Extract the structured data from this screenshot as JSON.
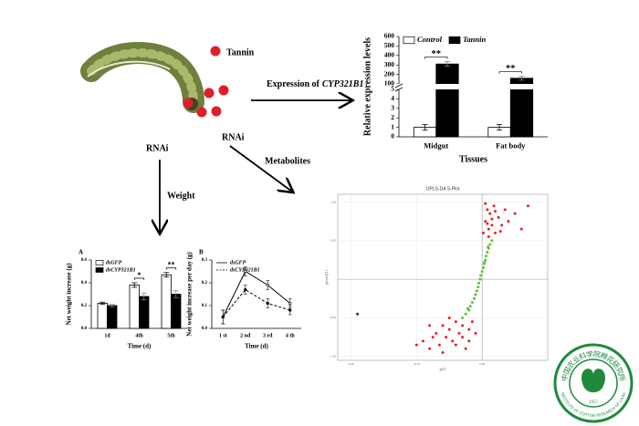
{
  "labels": {
    "tannin": "Tannin",
    "expression_prefix": "Expression of",
    "expression_gene": "CYP321B1",
    "rnai_left": "RNAi",
    "rnai_right": "RNAi",
    "metabolites": "Metabolites",
    "weight": "Weight"
  },
  "logo": {
    "name_cn": "中国农业科学院棉花研究所",
    "name_en": "INSTITUTE OF COTTON RESEARCH OF CAAS",
    "year": "1957"
  },
  "chart_data": [
    {
      "type": "bar",
      "ylabel": "Relative expression levels",
      "xlabel": "Tissues",
      "categories": [
        "Midgut",
        "Fat body"
      ],
      "series": [
        {
          "name": "Control",
          "color": "#ffffff",
          "values": [
            1,
            1
          ],
          "errors": [
            0.3,
            0.3
          ]
        },
        {
          "name": "Tannin",
          "color": "#000000",
          "values": [
            310,
            160
          ],
          "errors": [
            25,
            20
          ]
        }
      ],
      "annotations": [
        "**",
        "**"
      ],
      "ylim": [
        0,
        600
      ],
      "ybreak": [
        5,
        100
      ],
      "yticks": [
        0,
        1,
        2,
        3,
        4,
        5,
        100,
        200,
        300,
        400,
        500,
        600
      ]
    },
    {
      "type": "bar",
      "panel": "A",
      "ylabel": "Net weight increase (g)",
      "xlabel": "Time (d)",
      "categories": [
        "1d",
        "4th",
        "5th"
      ],
      "series": [
        {
          "name": "dsGFP",
          "color": "#ffffff",
          "values": [
            0.22,
            0.38,
            0.47
          ],
          "errors": [
            0.01,
            0.02,
            0.02
          ]
        },
        {
          "name": "dsCYP321B1",
          "color": "#000000",
          "values": [
            0.2,
            0.28,
            0.3
          ],
          "errors": [
            0.01,
            0.03,
            0.03
          ]
        }
      ],
      "annotations": [
        null,
        "*",
        "**"
      ],
      "ylim": [
        0,
        0.6
      ],
      "yticks": [
        {
          "value": 0,
          "label": "0.0"
        },
        0.2,
        0.4,
        0.6
      ]
    },
    {
      "type": "line",
      "panel": "B",
      "ylabel": "Net weight increase per day (g)",
      "xlabel": "Time (d)",
      "categories": [
        "1 st",
        "2 nd",
        "3 rd",
        "4 th"
      ],
      "series": [
        {
          "name": "dsGFP",
          "color": "#000000",
          "style": "solid",
          "values": [
            0.05,
            0.25,
            0.19,
            0.11
          ],
          "errors": [
            0.03,
            0.02,
            0.02,
            0.02
          ]
        },
        {
          "name": "dsCYP321B1",
          "color": "#000000",
          "style": "dashed",
          "values": [
            0.05,
            0.17,
            0.11,
            0.08
          ],
          "errors": [
            0.03,
            0.02,
            0.02,
            0.02
          ]
        }
      ],
      "ylim": [
        0,
        0.3
      ],
      "yticks": [
        {
          "value": 0,
          "label": "0.0"
        },
        0.1,
        0.2,
        0.3
      ]
    },
    {
      "type": "scatter",
      "title": "OPLS-DA S-Plot",
      "xlabel": "p[1]",
      "ylabel": "p(corr)[1]",
      "xlim": [
        -0.22,
        0.1
      ],
      "ylim": [
        -1.05,
        1.1
      ],
      "xticks": [
        {
          "value": -0.2,
          "label": "-0.20"
        },
        {
          "value": -0.1,
          "label": "-0.10"
        },
        {
          "value": 0,
          "label": "0.00"
        }
      ],
      "yticks": [
        {
          "value": -1,
          "label": "-1.00"
        },
        {
          "value": -0.5,
          "label": "-0.50"
        },
        {
          "value": 0.5,
          "label": "0.50"
        },
        {
          "value": 1,
          "label": "1.00"
        }
      ],
      "series": [
        {
          "color": "#5cc23a",
          "x": [
            -0.025,
            -0.02,
            -0.018,
            -0.015,
            -0.012,
            -0.01,
            -0.008,
            -0.006,
            -0.005,
            -0.003,
            -0.002,
            0,
            0.002,
            0.003,
            0.005,
            0.006,
            0.008,
            0.01,
            0.012,
            0.015,
            -0.03,
            -0.022,
            0.004,
            0.009
          ],
          "values": [
            -0.45,
            -0.4,
            -0.35,
            -0.3,
            -0.25,
            -0.2,
            -0.15,
            -0.1,
            -0.05,
            0,
            0.05,
            0.1,
            0.15,
            0.2,
            0.25,
            0.3,
            0.35,
            0.4,
            0.45,
            0.5,
            -0.5,
            -0.38,
            0.22,
            0.42
          ]
        },
        {
          "color": "#e8202a",
          "x": [
            -0.1,
            -0.09,
            -0.08,
            -0.075,
            -0.07,
            -0.065,
            -0.06,
            -0.055,
            -0.05,
            -0.045,
            -0.04,
            -0.035,
            -0.03,
            -0.025,
            -0.02,
            -0.015,
            -0.06,
            -0.05,
            -0.04,
            -0.03,
            -0.08,
            -0.02,
            -0.01,
            0.002,
            0.005,
            0.008,
            0.01,
            0.012,
            0.015,
            0.018,
            0.02,
            0.025,
            0.03,
            0.035,
            0.04,
            0.05,
            0.06,
            0.07,
            0.005,
            0.01,
            0.02,
            0.015,
            0.028,
            0.008
          ],
          "values": [
            -0.85,
            -0.8,
            -0.9,
            -0.75,
            -0.7,
            -0.85,
            -0.6,
            -0.75,
            -0.65,
            -0.8,
            -0.55,
            -0.7,
            -0.6,
            -0.9,
            -0.65,
            -0.55,
            -0.95,
            -0.5,
            -0.85,
            -0.75,
            -0.6,
            -0.8,
            -0.7,
            0.6,
            0.75,
            0.9,
            0.65,
            0.85,
            0.7,
            0.95,
            0.6,
            0.8,
            0.7,
            0.9,
            0.75,
            0.85,
            0.65,
            0.95,
            0.98,
            0.55,
            0.88,
            0.78,
            0.62,
            0.72
          ]
        },
        {
          "color": "#333333",
          "x": [
            -0.19
          ],
          "values": [
            -0.45
          ]
        }
      ]
    }
  ]
}
